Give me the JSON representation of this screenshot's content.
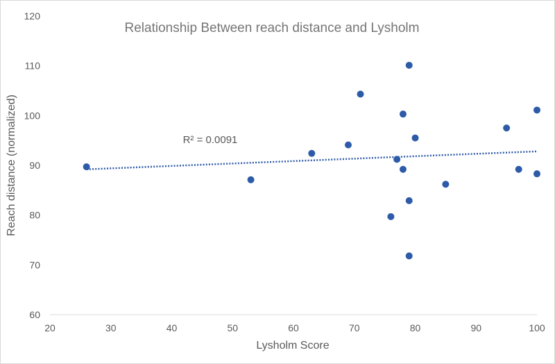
{
  "chart_data": {
    "type": "scatter",
    "title": "Relationship Between reach distance and Lysholm",
    "xlabel": "Lysholm Score",
    "ylabel": "Reach distance (normalized)",
    "xlim": [
      20,
      100
    ],
    "ylim": [
      60,
      120
    ],
    "xticks": [
      20,
      30,
      40,
      50,
      60,
      70,
      80,
      90,
      100
    ],
    "yticks": [
      60,
      70,
      80,
      90,
      100,
      110,
      120
    ],
    "grid": false,
    "legend": "none",
    "colors": {
      "points": "#2E5BA8",
      "trendline": "#2E5BA8",
      "text": "#595959",
      "title": "#757575"
    },
    "series": [
      {
        "x": [
          26,
          53,
          63,
          69,
          71,
          76,
          77,
          78,
          78,
          79,
          79,
          79,
          80,
          85,
          95,
          97,
          100,
          100
        ],
        "y": [
          89.7,
          87.1,
          92.4,
          94.1,
          104.3,
          79.7,
          91.2,
          100.3,
          89.2,
          110.1,
          82.9,
          71.8,
          95.5,
          86.2,
          97.5,
          89.2,
          101.1,
          88.3
        ]
      }
    ],
    "trendline": {
      "type": "linear",
      "style": "dotted",
      "x_range": [
        26,
        100
      ],
      "y_at_start": 89.2,
      "y_at_end": 92.8
    },
    "annotations": [
      {
        "text": "R² = 0.0091"
      }
    ]
  }
}
